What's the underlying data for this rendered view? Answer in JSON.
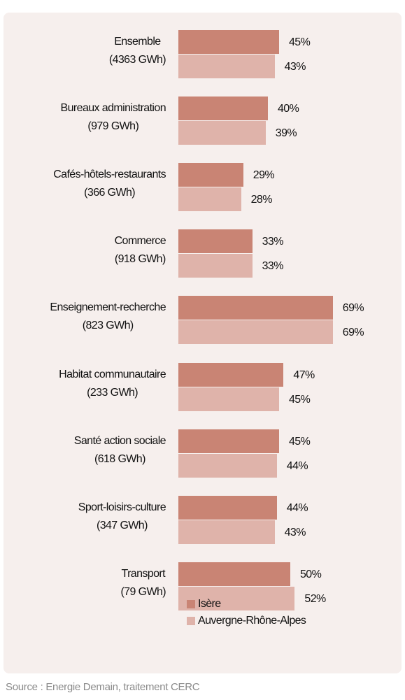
{
  "chart_data": {
    "type": "barh",
    "categories": [
      [
        "Ensemble",
        "(4363 GWh)"
      ],
      [
        "Bureaux administration",
        "(979 GWh)"
      ],
      [
        "Cafés-hôtels-restaurants",
        "(366 GWh)"
      ],
      [
        "Commerce",
        "(918 GWh)"
      ],
      [
        "Enseignement-recherche",
        "(823 GWh)"
      ],
      [
        "Habitat communautaire",
        "(233 GWh)"
      ],
      [
        "Santé action sociale",
        "(618 GWh)"
      ],
      [
        "Sport-loisirs-culture",
        "(347 GWh)"
      ],
      [
        "Transport",
        "(79 GWh)"
      ]
    ],
    "series": [
      {
        "name": "Isère",
        "color": "#c98474",
        "values": [
          45,
          40,
          29,
          33,
          69,
          47,
          45,
          44,
          50
        ],
        "value_labels": [
          "45%",
          "40%",
          "29%",
          "33%",
          "69%",
          "47%",
          "45%",
          "44%",
          "50%"
        ]
      },
      {
        "name": "Auvergne-Rhône-Alpes",
        "color": "#dfb3aa",
        "values": [
          43,
          39,
          28,
          33,
          69,
          45,
          44,
          43,
          52
        ],
        "value_labels": [
          "43%",
          "39%",
          "28%",
          "33%",
          "69%",
          "45%",
          "44%",
          "43%",
          "52%"
        ]
      }
    ],
    "source": "Source : Energie Demain, traitement CERC"
  }
}
